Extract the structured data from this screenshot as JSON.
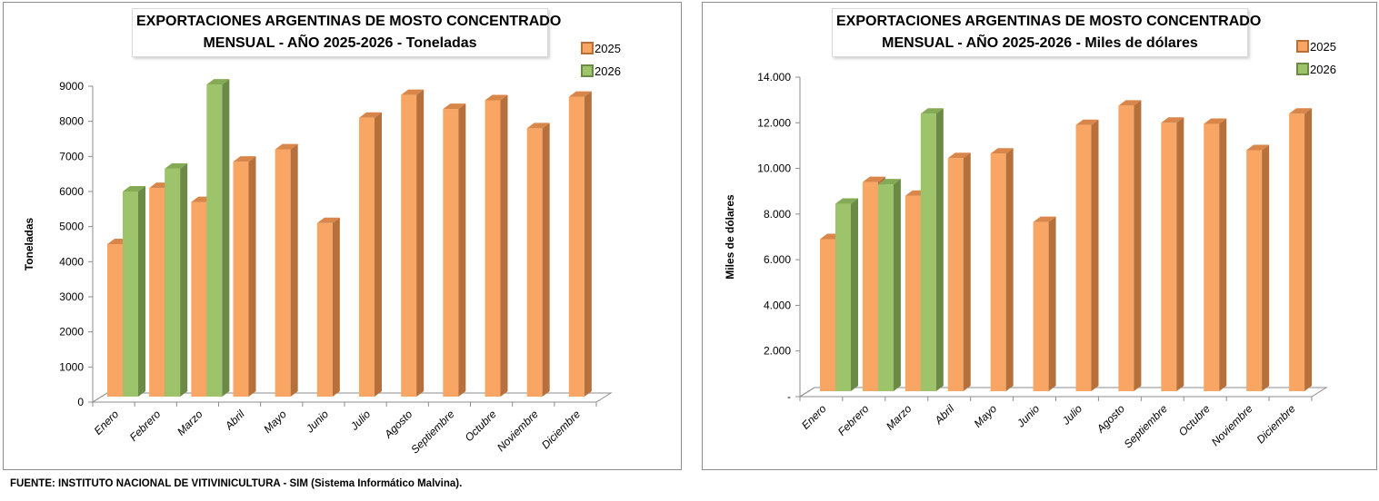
{
  "source_note": "FUENTE: INSTITUTO NACIONAL DE VITIVINICULTURA - SIM (Sistema Informático Malvina).",
  "colors": {
    "series_2025_front": "#F9A664",
    "series_2025_side": "#B5703C",
    "series_2025_top": "#D9864A",
    "series_2026_front": "#9DC36B",
    "series_2026_side": "#6B8A45",
    "series_2026_top": "#85AA55",
    "axis": "#8c8c8c"
  },
  "chart_data": [
    {
      "type": "bar",
      "title_line1": "EXPORTACIONES ARGENTINAS DE MOSTO CONCENTRADO",
      "title_line2": "MENSUAL - AÑO 2025-2026 - Toneladas",
      "xlabel": "",
      "ylabel": "Toneladas",
      "ylim": [
        0,
        9000
      ],
      "yticks": [
        0,
        1000,
        2000,
        3000,
        4000,
        5000,
        6000,
        7000,
        8000,
        9000
      ],
      "ytick_labels": [
        "0",
        "1000",
        "2000",
        "3000",
        "4000",
        "5000",
        "6000",
        "7000",
        "8000",
        "9000"
      ],
      "categories": [
        "Enero",
        "Febrero",
        "Marzo",
        "Abril",
        "Mayo",
        "Junio",
        "Julio",
        "Agosto",
        "Septiembre",
        "Octubre",
        "Noviembre",
        "Diciembre"
      ],
      "legend_position": "top-right",
      "grid": false,
      "series": [
        {
          "name": "2025",
          "values": [
            4500,
            6100,
            5700,
            6850,
            7200,
            5100,
            8100,
            8750,
            8350,
            8600,
            7800,
            8700
          ]
        },
        {
          "name": "2026",
          "values": [
            6000,
            6650,
            9050,
            null,
            null,
            null,
            null,
            null,
            null,
            null,
            null,
            null
          ]
        }
      ]
    },
    {
      "type": "bar",
      "title_line1": "EXPORTACIONES ARGENTINAS DE MOSTO CONCENTRADO",
      "title_line2": "MENSUAL - AÑO 2025-2026 - Miles de dólares",
      "xlabel": "",
      "ylabel": "Miles de dólares",
      "ylim": [
        0,
        14000
      ],
      "yticks": [
        0,
        2000,
        4000,
        6000,
        8000,
        10000,
        12000,
        14000
      ],
      "ytick_labels": [
        "-",
        "2.000",
        "4.000",
        "6.000",
        "8.000",
        "10.000",
        "12.000",
        "14.000"
      ],
      "categories": [
        "Enero",
        "Febrero",
        "Marzo",
        "Abril",
        "Mayo",
        "Junio",
        "Julio",
        "Agosto",
        "Septiembre",
        "Octubre",
        "Noviembre",
        "Diciembre"
      ],
      "legend_position": "top-right",
      "grid": false,
      "series": [
        {
          "name": "2025",
          "values": [
            6900,
            9400,
            8800,
            10450,
            10650,
            7650,
            11900,
            12750,
            12000,
            11950,
            10800,
            12400
          ]
        },
        {
          "name": "2026",
          "values": [
            8450,
            9300,
            12400,
            null,
            null,
            null,
            null,
            null,
            null,
            null,
            null,
            null
          ]
        }
      ]
    }
  ]
}
